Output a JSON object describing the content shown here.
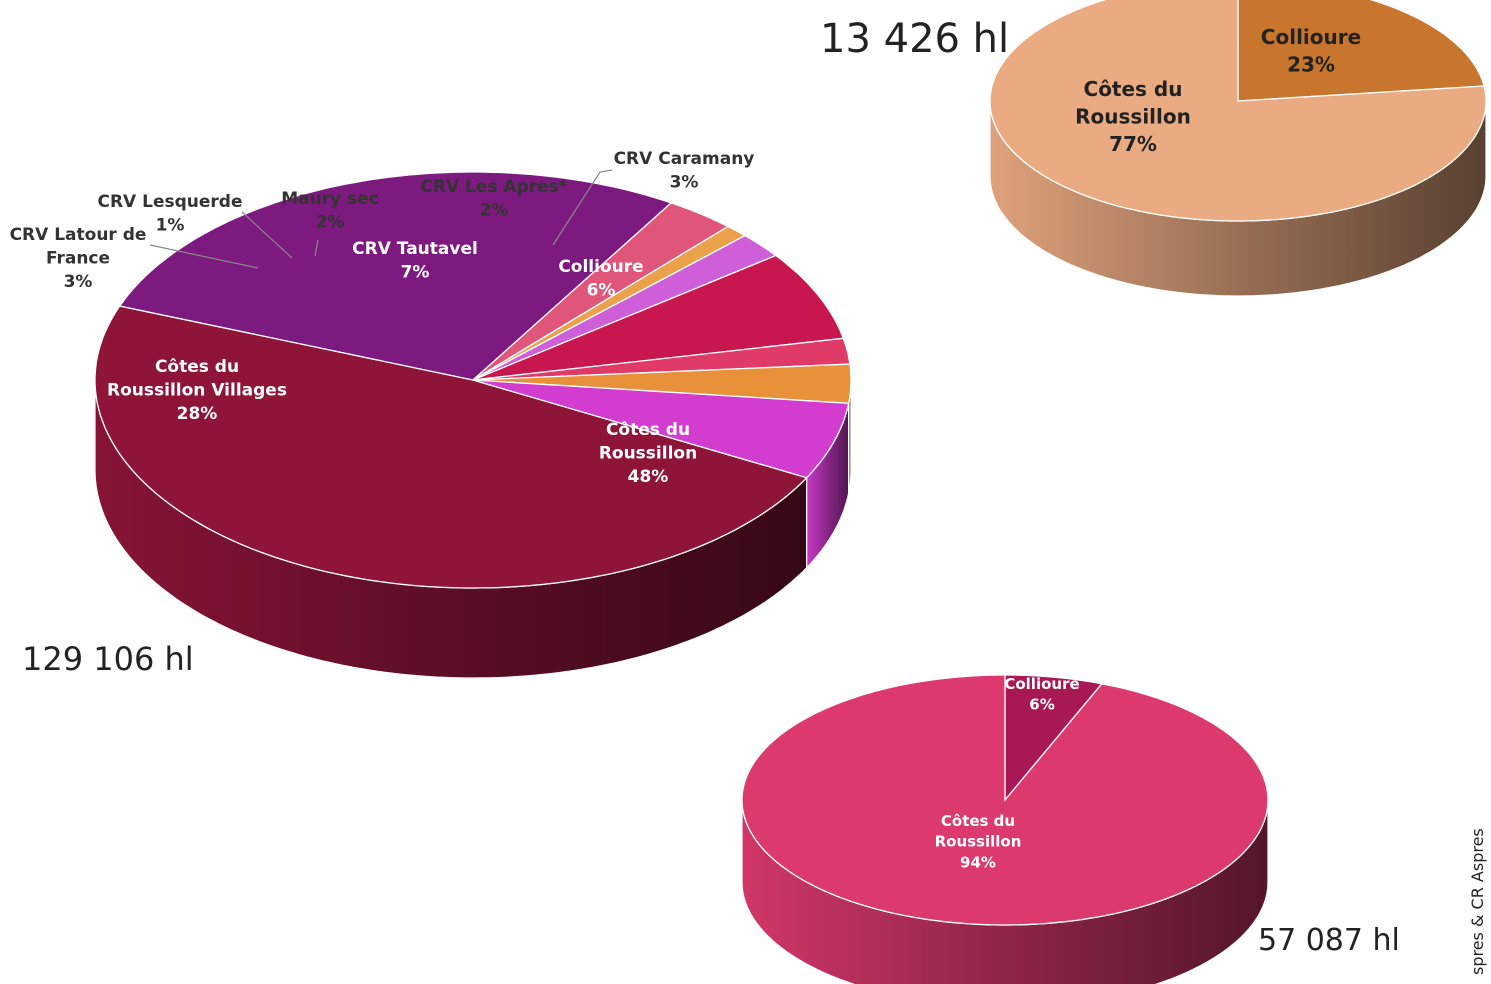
{
  "source_note": "spres & CR Aspres",
  "chart_data": [
    {
      "type": "pie",
      "total_label": "129 106 hl",
      "slices": [
        {
          "name": "Côtes du Roussillon",
          "lines": [
            "Côtes du",
            "Roussillon"
          ],
          "pct_label": "48%",
          "value": 48,
          "color": "#8e1538"
        },
        {
          "name": "Côtes du Roussillon Villages",
          "lines": [
            "Côtes du",
            "Roussillon Villages"
          ],
          "pct_label": "28%",
          "value": 28,
          "color": "#7d1a7f"
        },
        {
          "name": "CRV Latour de France",
          "lines": [
            "CRV Latour de",
            "France"
          ],
          "pct_label": "3%",
          "value": 3,
          "color": "#e0567a"
        },
        {
          "name": "CRV Lesquerde",
          "lines": [
            "CRV Lesquerde"
          ],
          "pct_label": "1%",
          "value": 1,
          "color": "#eba04a"
        },
        {
          "name": "Maury sec",
          "lines": [
            "Maury sec"
          ],
          "pct_label": "2%",
          "value": 2,
          "color": "#cf5fd8"
        },
        {
          "name": "CRV Tautavel",
          "lines": [
            "CRV Tautavel"
          ],
          "pct_label": "7%",
          "value": 7,
          "color": "#c8174f"
        },
        {
          "name": "CRV Les Apres*",
          "lines": [
            "CRV Les Apres*"
          ],
          "pct_label": "2%",
          "value": 2,
          "color": "#e03a68"
        },
        {
          "name": "CRV Caramany",
          "lines": [
            "CRV Caramany"
          ],
          "pct_label": "3%",
          "value": 3,
          "color": "#e8903a"
        },
        {
          "name": "Collioure",
          "lines": [
            "Collioure"
          ],
          "pct_label": "6%",
          "value": 6,
          "color": "#d23ccf"
        }
      ]
    },
    {
      "type": "pie",
      "total_label": "13 426 hl",
      "slices": [
        {
          "name": "Collioure",
          "lines": [
            "Collioure"
          ],
          "pct_label": "23%",
          "value": 23,
          "color": "#c8752e"
        },
        {
          "name": "Côtes du Roussillon",
          "lines": [
            "Côtes du",
            "Roussillon"
          ],
          "pct_label": "77%",
          "value": 77,
          "color": "#ebab82"
        }
      ]
    },
    {
      "type": "pie",
      "total_label": "57 087 hl",
      "slices": [
        {
          "name": "Collioure",
          "lines": [
            "Collioure"
          ],
          "pct_label": "6%",
          "value": 6,
          "color": "#a81855"
        },
        {
          "name": "Côtes du Roussillon",
          "lines": [
            "Côtes du",
            "Roussillon"
          ],
          "pct_label": "94%",
          "value": 94,
          "color": "#dc3a6c"
        }
      ]
    }
  ]
}
